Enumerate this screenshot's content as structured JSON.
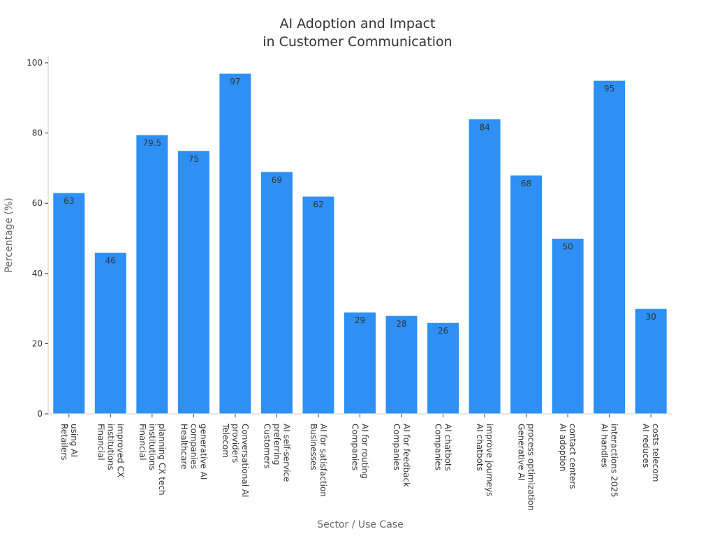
{
  "chart_data": {
    "type": "bar",
    "title": [
      "AI Adoption and Impact",
      "in Customer Communication"
    ],
    "xlabel": "Sector / Use Case",
    "ylabel": "Percentage (%)",
    "ylim": [
      0,
      100
    ],
    "yticks": [
      0,
      20,
      40,
      60,
      80,
      100
    ],
    "grid": false,
    "bar_color": "#2e90f5",
    "categories": [
      [
        "Retailers",
        "using AI"
      ],
      [
        "Financial",
        "institutions",
        "improved CX"
      ],
      [
        "Financial",
        "institutions",
        "planning CX tech"
      ],
      [
        "Healthcare",
        "companies",
        "generative AI"
      ],
      [
        "Telecom",
        "providers",
        "Conversational AI"
      ],
      [
        "Customers",
        "preferring",
        "AI self-service"
      ],
      [
        "Businesses",
        "AI for satisfaction"
      ],
      [
        "Companies",
        "AI for routing"
      ],
      [
        "Companies",
        "AI for feedback"
      ],
      [
        "Companies",
        "AI chatbots"
      ],
      [
        "AI chatbots",
        "improve journeys"
      ],
      [
        "Generative AI",
        "process optimization"
      ],
      [
        "AI adoption",
        "contact centers"
      ],
      [
        "AI handles",
        "interactions 2025"
      ],
      [
        "AI reduces",
        "costs telecom"
      ]
    ],
    "values": [
      63,
      46,
      79.5,
      75,
      97,
      69,
      62,
      29,
      28,
      26,
      84,
      68,
      50,
      95,
      30
    ],
    "value_labels": [
      "63",
      "46",
      "79.5",
      "75",
      "97",
      "69",
      "62",
      "29",
      "28",
      "26",
      "84",
      "68",
      "50",
      "95",
      "30"
    ]
  }
}
